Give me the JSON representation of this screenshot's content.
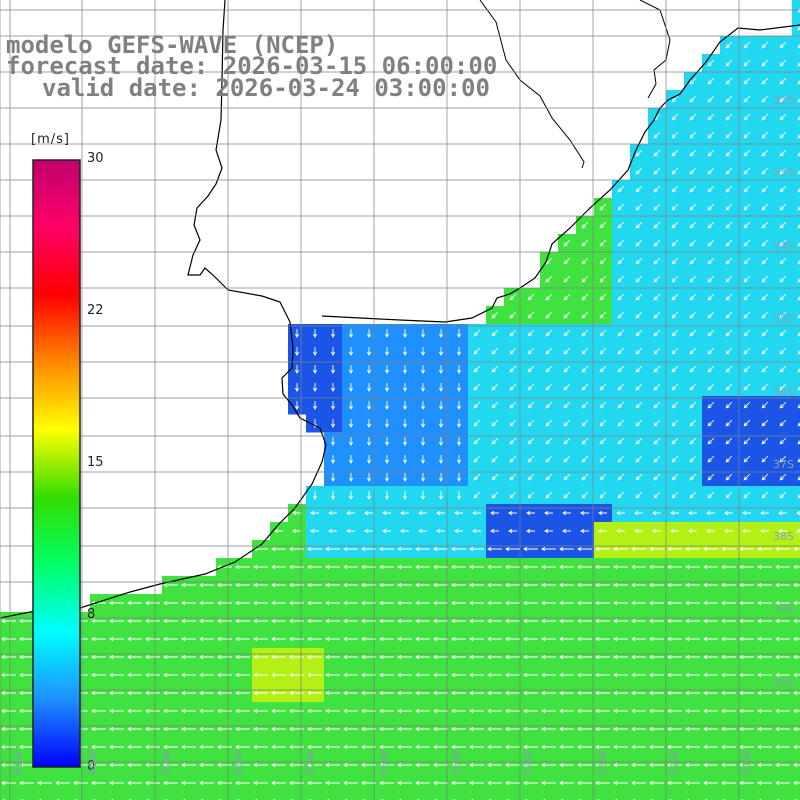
{
  "titles": {
    "model": "modelo GEFS-WAVE (NCEP)",
    "forecast": "forecast date: 2026-03-15 06:00:00",
    "valid": "valid date: 2026-03-24 03:00:00"
  },
  "colorbar": {
    "unit": "[m/s]",
    "min": 0,
    "max": 30,
    "ticks": [
      {
        "label": "30",
        "value": 30
      },
      {
        "label": "22",
        "value": 22
      },
      {
        "label": "15",
        "value": 15
      },
      {
        "label": "8",
        "value": 8
      },
      {
        "label": "0",
        "value": 0
      }
    ],
    "colors": [
      "#0000ff",
      "#1e90ff",
      "#00ffff",
      "#00ff66",
      "#33dd00",
      "#ffff00",
      "#ff8800",
      "#ff0000",
      "#ff0066",
      "#c0006f"
    ]
  },
  "lat_labels": [
    "32S",
    "33S",
    "34S",
    "35S",
    "36S",
    "37S",
    "38S",
    "39S",
    "40S"
  ],
  "lon_labels": [
    "61W",
    "60W",
    "59W",
    "58W",
    "57W",
    "56W",
    "55W",
    "54W",
    "53W",
    "52W",
    "51W"
  ],
  "colors": {
    "deep_blue": "#1a55e8",
    "blue": "#1e90ff",
    "cyan": "#22d8f0",
    "green": "#3fe23f",
    "yellow_green": "#b4f014",
    "land": "#ffffff",
    "grid": "#808080",
    "coast": "#000000",
    "arrow": "#ffffff"
  }
}
